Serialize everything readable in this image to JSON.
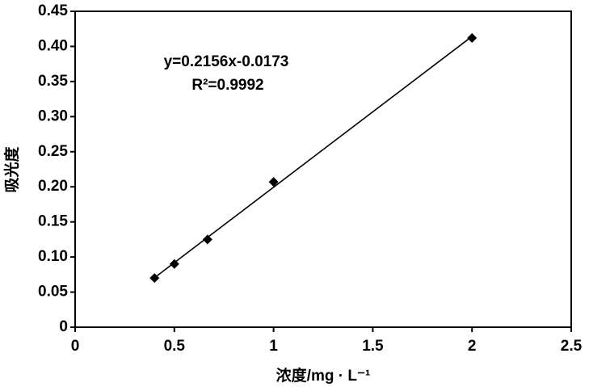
{
  "chart_data": {
    "type": "scatter",
    "x_label": "浓度/mg · L⁻¹",
    "y_label": "吸光度",
    "annotations": [
      "y=0.2156x-0.0173",
      "R²=0.9992"
    ],
    "trendline": true,
    "series": [
      {
        "color": "#000000",
        "x": [
          0.4,
          0.5,
          0.667,
          1,
          2
        ],
        "values": [
          0.07,
          0.09,
          0.125,
          0.207,
          0.412
        ]
      }
    ],
    "xlim": [
      0,
      2.5
    ],
    "xticks": [
      0,
      0.5,
      1,
      1.5,
      2,
      2.5
    ],
    "ylim": [
      0,
      0.45
    ],
    "yticks": [
      0,
      0.05,
      {
        "value": 0.1,
        "label": "0.10"
      },
      0.15,
      {
        "value": 0.2,
        "label": "0.20"
      },
      0.25,
      {
        "value": 0.3,
        "label": "0.30"
      },
      0.35,
      {
        "value": 0.4,
        "label": "0.40"
      },
      0.45
    ]
  }
}
